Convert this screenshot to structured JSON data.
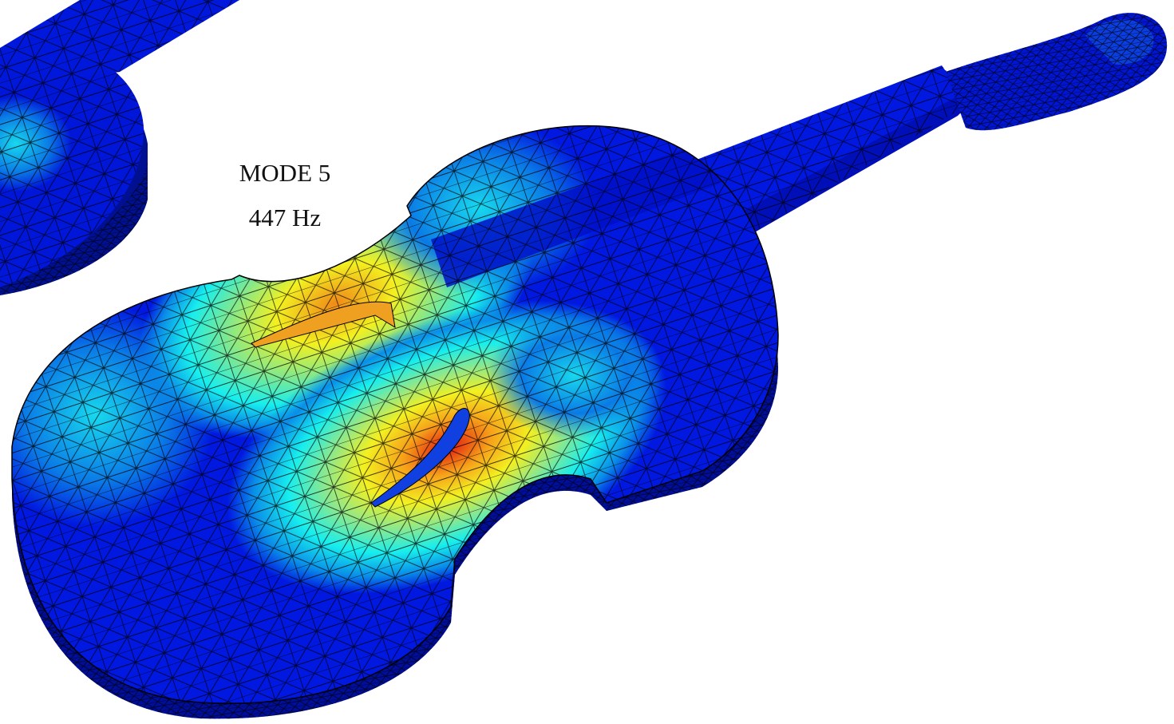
{
  "label": {
    "mode": "MODE 5",
    "frequency": "447 Hz"
  }
}
